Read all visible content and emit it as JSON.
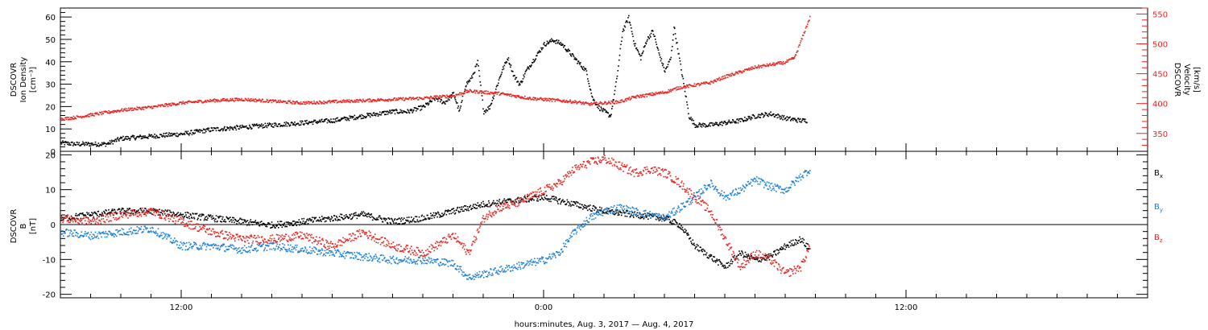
{
  "xlabel": "hours:minutes, Aug.  3, 2017 — Aug.  4, 2017",
  "chart_data": [
    {
      "type": "scatter",
      "panel": "plasma",
      "xlim": [
        -16,
        20
      ],
      "x_unit": "hours relative to 00:00 UT Aug 4, 2017",
      "x_tick_labels": [
        {
          "x": -12,
          "label": "12:00"
        },
        {
          "x": 0,
          "label": "0:00"
        },
        {
          "x": 12,
          "label": "12:00"
        }
      ],
      "left_axis": {
        "label_lines": [
          "DSCOVR",
          "Ion Density",
          "[cm⁻³]"
        ],
        "ylim": [
          0,
          64
        ],
        "ticks": [
          0,
          10,
          20,
          30,
          40,
          50,
          60
        ],
        "color": "#000000"
      },
      "right_axis": {
        "label_lines": [
          "DSCOVR",
          "Velocity",
          "[km/s]"
        ],
        "ylim": [
          320,
          560
        ],
        "ticks": [
          350,
          400,
          450,
          500,
          550
        ],
        "color": "#e8231f"
      },
      "series": [
        {
          "axis": "left",
          "color": "#000000",
          "points": [
            [
              -16,
              4
            ],
            [
              -15.5,
              3.5
            ],
            [
              -15,
              3.5
            ],
            [
              -14.5,
              3.5
            ],
            [
              -14,
              6
            ],
            [
              -13,
              7
            ],
            [
              -12,
              8
            ],
            [
              -11,
              10
            ],
            [
              -10,
              11
            ],
            [
              -9,
              12
            ],
            [
              -8,
              13
            ],
            [
              -7,
              14
            ],
            [
              -6,
              16
            ],
            [
              -5,
              18
            ],
            [
              -4.5,
              18
            ],
            [
              -4,
              20
            ],
            [
              -3.6,
              24
            ],
            [
              -3.3,
              22
            ],
            [
              -3,
              26
            ],
            [
              -2.8,
              18
            ],
            [
              -2.6,
              30
            ],
            [
              -2.4,
              33
            ],
            [
              -2.2,
              40
            ],
            [
              -2,
              18
            ],
            [
              -1.8,
              20
            ],
            [
              -1.6,
              28
            ],
            [
              -1.4,
              36
            ],
            [
              -1.2,
              42
            ],
            [
              -1,
              34
            ],
            [
              -0.8,
              30
            ],
            [
              -0.6,
              36
            ],
            [
              -0.4,
              40
            ],
            [
              -0.2,
              44
            ],
            [
              0,
              48
            ],
            [
              0.3,
              50
            ],
            [
              0.6,
              48
            ],
            [
              1,
              42
            ],
            [
              1.4,
              36
            ],
            [
              1.6,
              24
            ],
            [
              1.8,
              20
            ],
            [
              2,
              18
            ],
            [
              2.2,
              16
            ],
            [
              2.4,
              32
            ],
            [
              2.6,
              54
            ],
            [
              2.8,
              60
            ],
            [
              3,
              48
            ],
            [
              3.2,
              42
            ],
            [
              3.4,
              50
            ],
            [
              3.6,
              54
            ],
            [
              3.8,
              44
            ],
            [
              4,
              36
            ],
            [
              4.2,
              42
            ],
            [
              4.3,
              56
            ],
            [
              4.5,
              40
            ],
            [
              4.8,
              16
            ],
            [
              5,
              12
            ],
            [
              5.5,
              12
            ],
            [
              6,
              13
            ],
            [
              6.5,
              14
            ],
            [
              7,
              16
            ],
            [
              7.5,
              17
            ],
            [
              8,
              15
            ],
            [
              8.5,
              14
            ],
            [
              8.7,
              14
            ]
          ]
        },
        {
          "axis": "right",
          "color": "#e8231f",
          "points": [
            [
              -16,
              375
            ],
            [
              -15.5,
              378
            ],
            [
              -15,
              382
            ],
            [
              -14,
              390
            ],
            [
              -13,
              395
            ],
            [
              -12,
              402
            ],
            [
              -11,
              406
            ],
            [
              -10,
              408
            ],
            [
              -9,
              405
            ],
            [
              -8,
              402
            ],
            [
              -7,
              404
            ],
            [
              -6,
              406
            ],
            [
              -5,
              408
            ],
            [
              -4,
              410
            ],
            [
              -3.5,
              412
            ],
            [
              -3,
              414
            ],
            [
              -2.5,
              422
            ],
            [
              -2,
              420
            ],
            [
              -1.5,
              418
            ],
            [
              -1,
              414
            ],
            [
              -0.5,
              410
            ],
            [
              0,
              408
            ],
            [
              0.5,
              406
            ],
            [
              1,
              404
            ],
            [
              1.5,
              400
            ],
            [
              2,
              402
            ],
            [
              2.5,
              404
            ],
            [
              3,
              412
            ],
            [
              3.5,
              416
            ],
            [
              4,
              420
            ],
            [
              4.5,
              428
            ],
            [
              5,
              432
            ],
            [
              5.5,
              436
            ],
            [
              6,
              446
            ],
            [
              6.5,
              454
            ],
            [
              7,
              462
            ],
            [
              7.5,
              466
            ],
            [
              8,
              470
            ],
            [
              8.3,
              478
            ],
            [
              8.5,
              505
            ],
            [
              8.7,
              532
            ],
            [
              8.8,
              545
            ]
          ]
        }
      ]
    },
    {
      "type": "scatter",
      "panel": "magnetic field",
      "xlim": [
        -16,
        20
      ],
      "ylabel_lines": [
        "DSCOVR",
        "B",
        "[nT]"
      ],
      "ylim": [
        -21,
        21
      ],
      "ticks": [
        -20,
        -10,
        0,
        10,
        20
      ],
      "zero_line": true,
      "series": [
        {
          "name": "B_x",
          "label": "B",
          "subscript": "x",
          "color": "#000000",
          "points": [
            [
              -16,
              2
            ],
            [
              -15,
              3
            ],
            [
              -14,
              4
            ],
            [
              -13,
              4
            ],
            [
              -12,
              3
            ],
            [
              -11,
              2
            ],
            [
              -10,
              1
            ],
            [
              -9,
              0
            ],
            [
              -8,
              1
            ],
            [
              -7,
              2
            ],
            [
              -6,
              3
            ],
            [
              -5,
              1
            ],
            [
              -4,
              2
            ],
            [
              -3,
              4
            ],
            [
              -2,
              6
            ],
            [
              -1,
              7
            ],
            [
              0,
              8
            ],
            [
              1,
              6
            ],
            [
              2,
              4
            ],
            [
              3,
              3
            ],
            [
              4,
              2
            ],
            [
              4.5,
              0
            ],
            [
              5,
              -6
            ],
            [
              5.5,
              -9
            ],
            [
              6,
              -12
            ],
            [
              6.5,
              -8
            ],
            [
              7,
              -10
            ],
            [
              7.5,
              -9
            ],
            [
              8,
              -6
            ],
            [
              8.5,
              -4
            ],
            [
              8.8,
              -7
            ]
          ]
        },
        {
          "name": "B_y",
          "label": "B",
          "subscript": "y",
          "color": "#1c7fd6",
          "points": [
            [
              -16,
              -2
            ],
            [
              -15,
              -3
            ],
            [
              -14,
              -2
            ],
            [
              -13,
              -1
            ],
            [
              -12,
              -6
            ],
            [
              -11,
              -6
            ],
            [
              -10,
              -7
            ],
            [
              -9,
              -6
            ],
            [
              -8,
              -7
            ],
            [
              -7,
              -8
            ],
            [
              -6,
              -9
            ],
            [
              -5,
              -10
            ],
            [
              -4,
              -10
            ],
            [
              -3,
              -11
            ],
            [
              -2.5,
              -15
            ],
            [
              -2,
              -14
            ],
            [
              -1.5,
              -13
            ],
            [
              -1,
              -12
            ],
            [
              -0.5,
              -11
            ],
            [
              0,
              -10
            ],
            [
              0.5,
              -8
            ],
            [
              1,
              -2
            ],
            [
              1.5,
              2
            ],
            [
              2,
              4
            ],
            [
              2.5,
              5
            ],
            [
              3,
              4
            ],
            [
              3.5,
              3
            ],
            [
              4,
              2
            ],
            [
              4.5,
              5
            ],
            [
              5,
              8
            ],
            [
              5.5,
              12
            ],
            [
              6,
              8
            ],
            [
              6.5,
              10
            ],
            [
              7,
              13
            ],
            [
              7.5,
              11
            ],
            [
              8,
              10
            ],
            [
              8.5,
              14
            ],
            [
              8.8,
              16
            ]
          ]
        },
        {
          "name": "B_z",
          "label": "B",
          "subscript": "z",
          "color": "#e8231f",
          "points": [
            [
              -16,
              2
            ],
            [
              -15,
              1
            ],
            [
              -14,
              3
            ],
            [
              -13,
              4
            ],
            [
              -12,
              1
            ],
            [
              -11,
              -2
            ],
            [
              -10,
              -4
            ],
            [
              -9,
              -4
            ],
            [
              -8,
              -3
            ],
            [
              -7,
              -6
            ],
            [
              -6,
              -2
            ],
            [
              -5,
              -6
            ],
            [
              -4,
              -8
            ],
            [
              -3,
              -3
            ],
            [
              -2.5,
              -8
            ],
            [
              -2,
              2
            ],
            [
              -1.5,
              5
            ],
            [
              -1,
              6
            ],
            [
              -0.5,
              8
            ],
            [
              0,
              10
            ],
            [
              0.5,
              12
            ],
            [
              1,
              16
            ],
            [
              1.5,
              18
            ],
            [
              2,
              19
            ],
            [
              2.5,
              17
            ],
            [
              3,
              15
            ],
            [
              3.5,
              16
            ],
            [
              4,
              15
            ],
            [
              4.5,
              12
            ],
            [
              5,
              8
            ],
            [
              5.5,
              4
            ],
            [
              6,
              -4
            ],
            [
              6.5,
              -12
            ],
            [
              7,
              -8
            ],
            [
              7.5,
              -10
            ],
            [
              8,
              -14
            ],
            [
              8.5,
              -12
            ],
            [
              8.8,
              -6
            ]
          ]
        }
      ]
    }
  ]
}
